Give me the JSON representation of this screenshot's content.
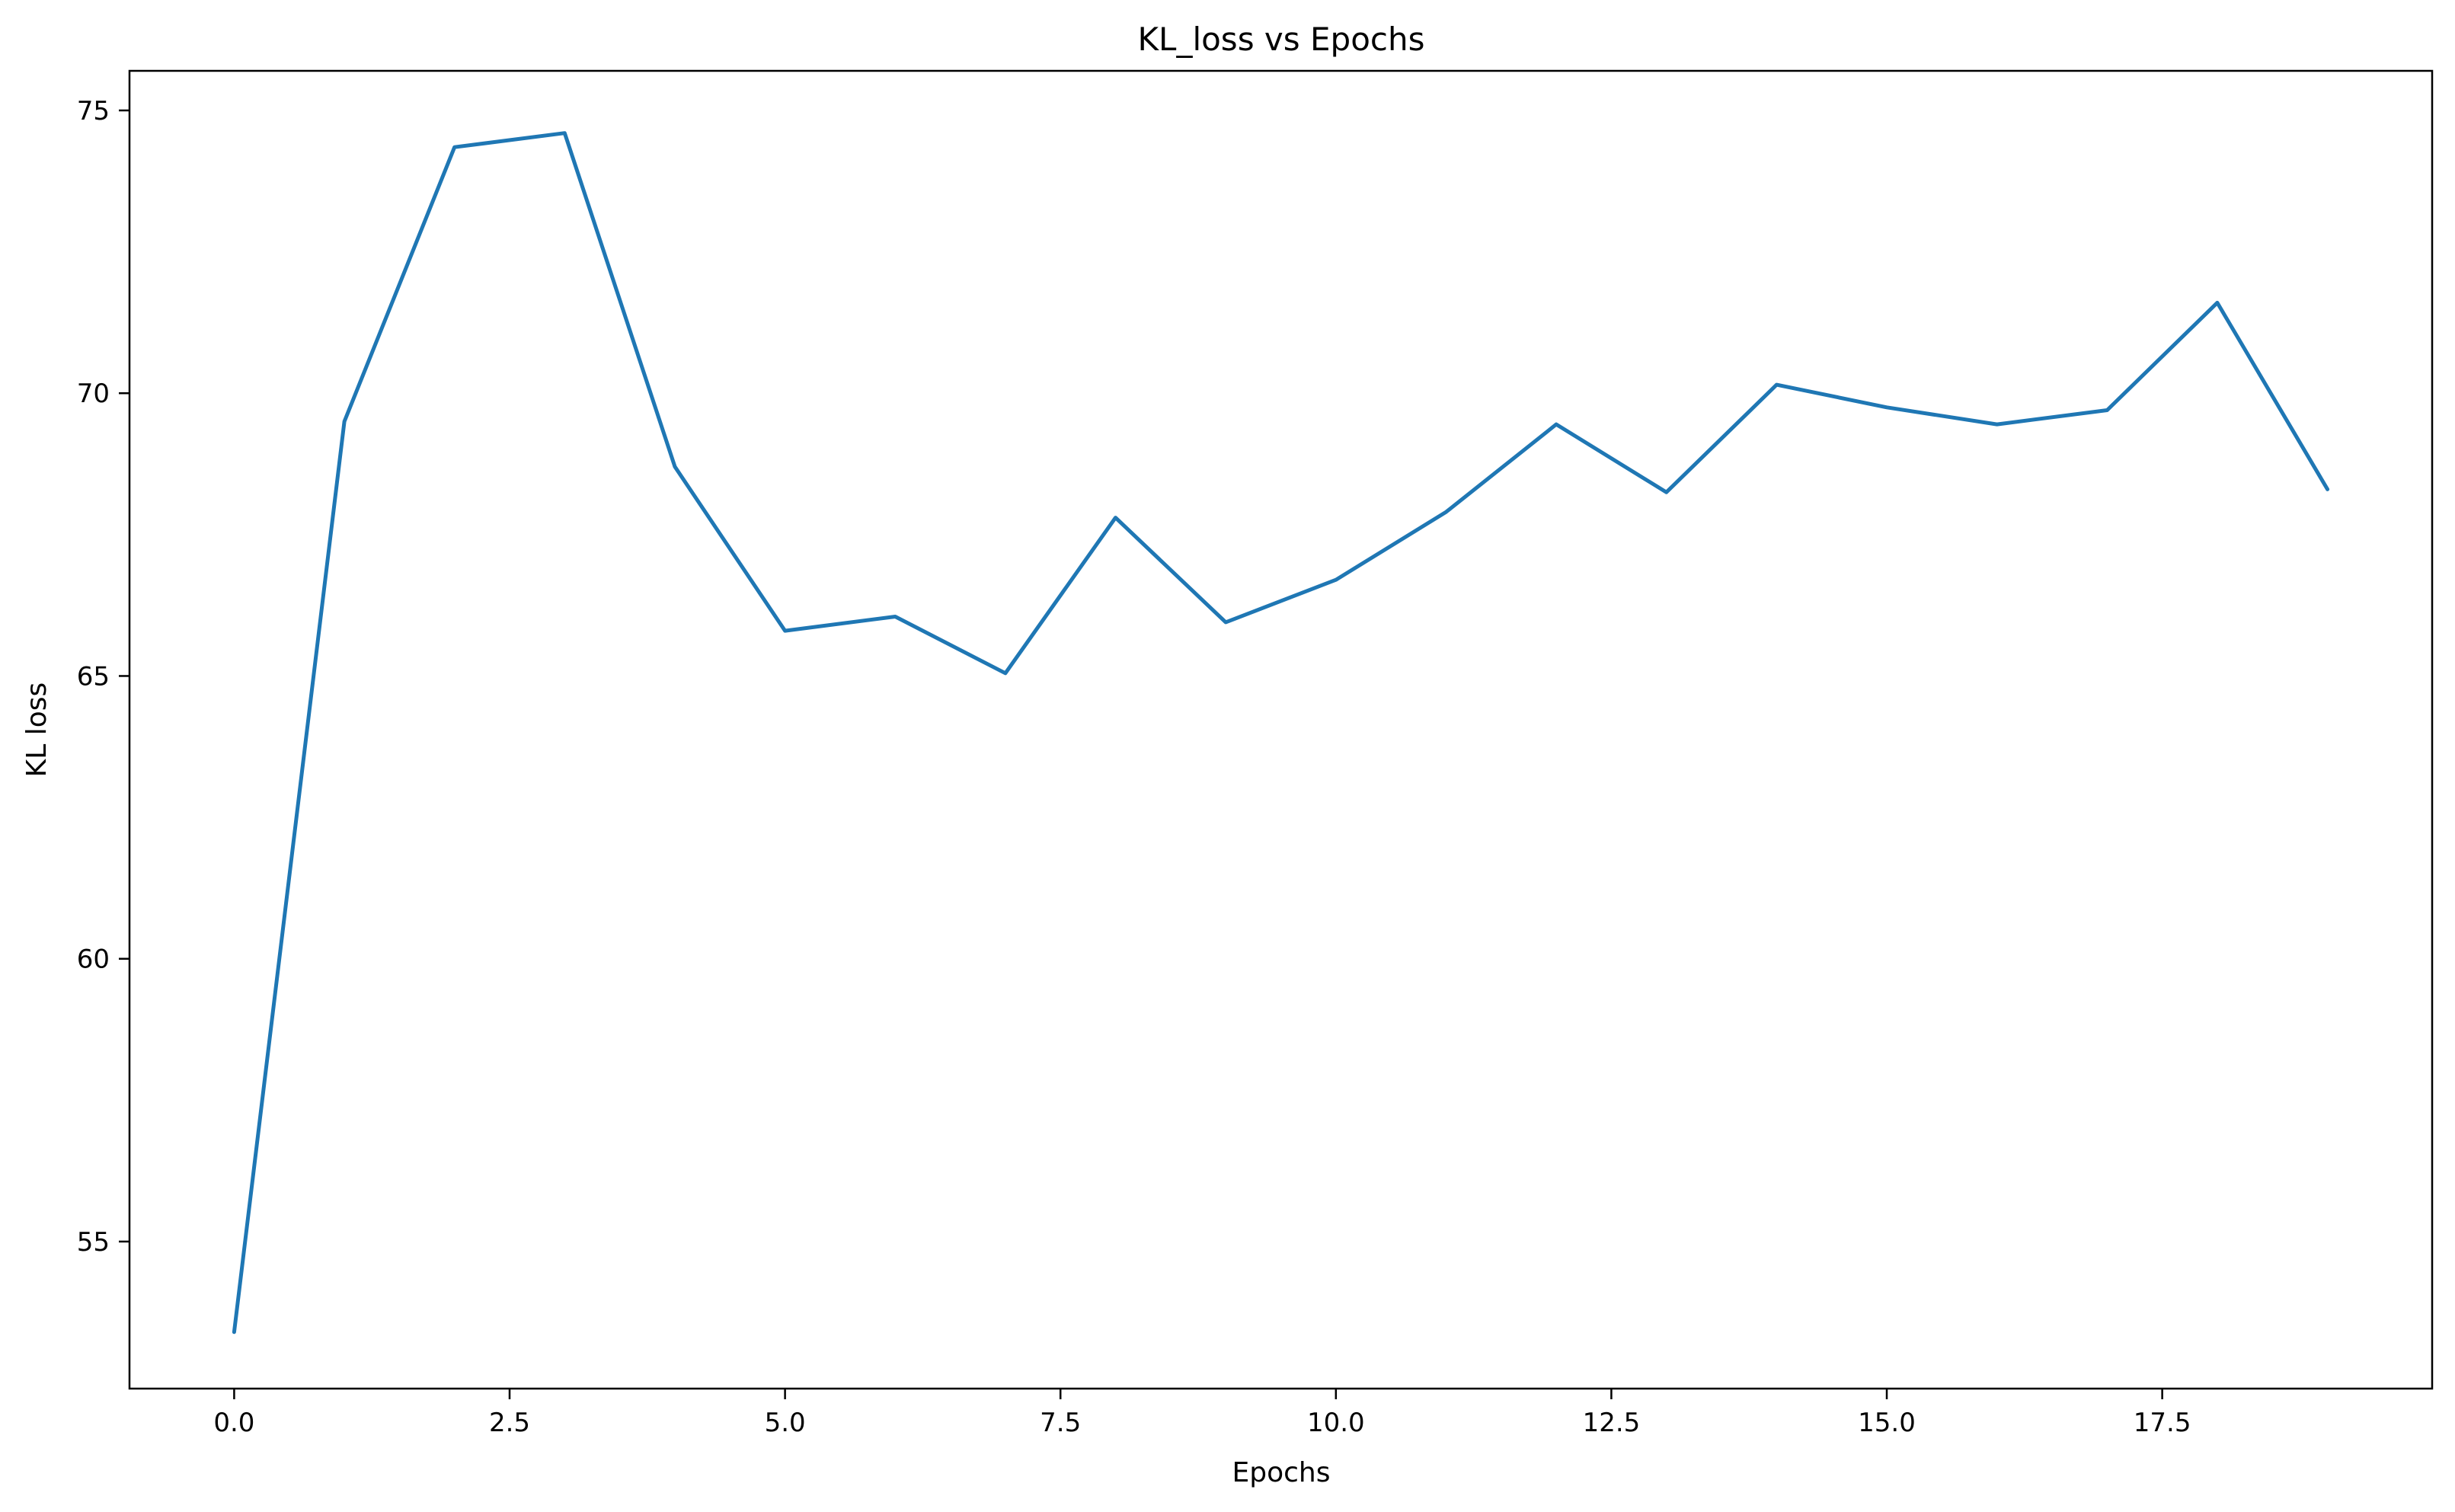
{
  "chart_data": {
    "type": "line",
    "title": "KL_loss vs Epochs",
    "xlabel": "Epochs",
    "ylabel": "KL loss",
    "xlim": [
      -0.95,
      19.95
    ],
    "ylim": [
      52.4,
      75.7
    ],
    "xticks": [
      0.0,
      2.5,
      5.0,
      7.5,
      10.0,
      12.5,
      15.0,
      17.5
    ],
    "xtick_labels": [
      "0.0",
      "2.5",
      "5.0",
      "7.5",
      "10.0",
      "12.5",
      "15.0",
      "17.5"
    ],
    "yticks": [
      55,
      60,
      65,
      70,
      75
    ],
    "ytick_labels": [
      "55",
      "60",
      "65",
      "70",
      "75"
    ],
    "grid": false,
    "series": [
      {
        "color": "#1f77b4",
        "x": [
          0,
          1,
          2,
          3,
          4,
          5,
          6,
          7,
          8,
          9,
          10,
          11,
          12,
          13,
          14,
          15,
          16,
          17,
          18,
          19
        ],
        "y": [
          53.4,
          69.5,
          74.35,
          74.6,
          68.7,
          65.8,
          66.05,
          65.05,
          67.8,
          65.95,
          66.7,
          67.9,
          69.45,
          68.25,
          70.15,
          69.75,
          69.45,
          69.7,
          71.6,
          68.3
        ]
      }
    ]
  }
}
